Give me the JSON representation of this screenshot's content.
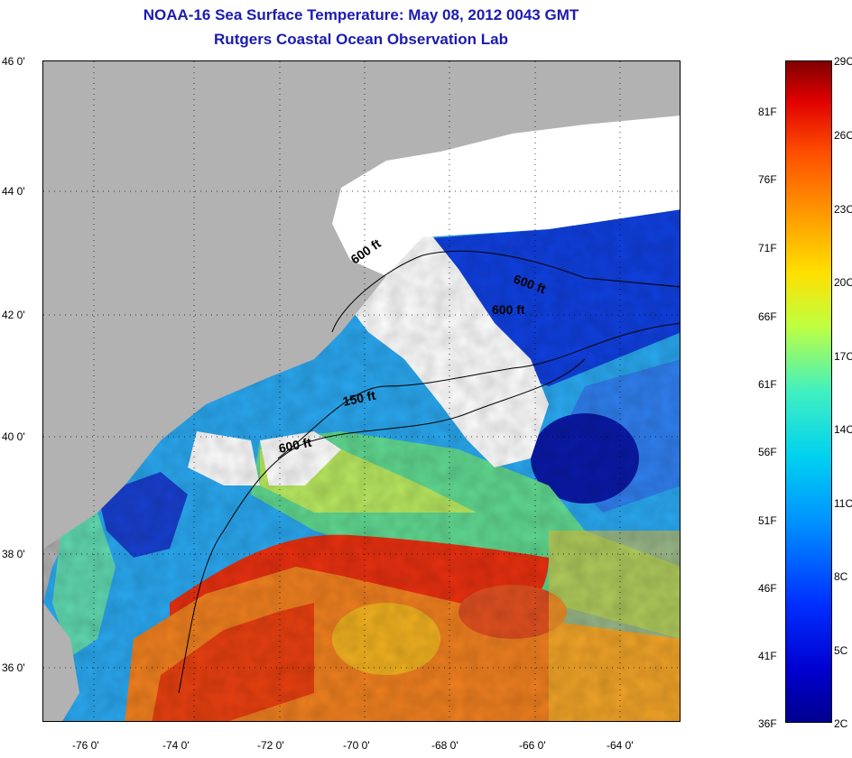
{
  "title": {
    "line1": "NOAA-16 Sea Surface Temperature:  May 08, 2012 0043 GMT",
    "line2": "Rutgers Coastal Ocean Observation Lab"
  },
  "map": {
    "lat_labels": [
      "46 0'",
      "44 0'",
      "42 0'",
      "40 0'",
      "38 0'",
      "36 0'"
    ],
    "lon_labels": [
      "-76 0'",
      "-74 0'",
      "-72 0'",
      "-70 0'",
      "-68 0'",
      "-66 0'",
      "-64 0'"
    ],
    "contour_labels": [
      "600 ft",
      "600 ft",
      "600 ft",
      "150 ft",
      "600 ft"
    ],
    "colors": {
      "land": "#b2b2b2",
      "cloud": "#ffffff",
      "warm": "#e83010",
      "cold": "#1030d0"
    }
  },
  "colorbar": {
    "fahrenheit": [
      "81F",
      "76F",
      "71F",
      "66F",
      "61F",
      "56F",
      "51F",
      "46F",
      "41F",
      "36F"
    ],
    "celsius": [
      "29C",
      "26C",
      "23C",
      "20C",
      "17C",
      "14C",
      "11C",
      "8C",
      "5C",
      "2C"
    ]
  }
}
